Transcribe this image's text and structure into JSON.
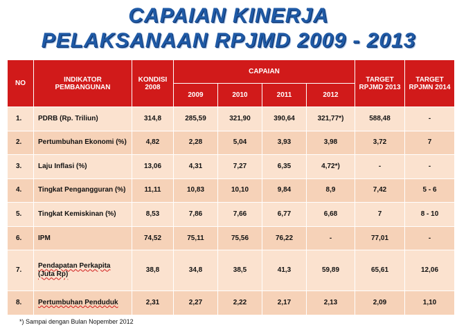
{
  "title": {
    "line1": "CAPAIAN KINERJA",
    "line2": "PELAKSANAAN RPJMD 2009 - 2013"
  },
  "table": {
    "headers": {
      "no": "NO",
      "indikator": "INDIKATOR PEMBANGUNAN",
      "kondisi": "KONDISI 2008",
      "capaian": "CAPAIAN",
      "years": [
        "2009",
        "2010",
        "2011",
        "2012"
      ],
      "target_rpjmd": "TARGET RPJMD 2013",
      "target_rpjmn": "TARGET RPJMN 2014"
    },
    "rows": [
      {
        "no": "1.",
        "indikator": "PDRB (Rp. Triliun)",
        "kondisi": "314,8",
        "y2009": "285,59",
        "y2010": "321,90",
        "y2011": "390,64",
        "y2012": "321,77*)",
        "rpjmd": "588,48",
        "rpjmn": "-"
      },
      {
        "no": "2.",
        "indikator": "Pertumbuhan Ekonomi (%)",
        "kondisi": "4,82",
        "y2009": "2,28",
        "y2010": "5,04",
        "y2011": "3,93",
        "y2012": "3,98",
        "rpjmd": "3,72",
        "rpjmn": "7"
      },
      {
        "no": "3.",
        "indikator": "Laju Inflasi (%)",
        "kondisi": "13,06",
        "y2009": "4,31",
        "y2010": "7,27",
        "y2011": "6,35",
        "y2012": "4,72*)",
        "rpjmd": "-",
        "rpjmn": "-"
      },
      {
        "no": "4.",
        "indikator": "Tingkat Pengangguran (%)",
        "kondisi": "11,11",
        "y2009": "10,83",
        "y2010": "10,10",
        "y2011": "9,84",
        "y2012": "8,9",
        "rpjmd": "7,42",
        "rpjmn": "5 - 6"
      },
      {
        "no": "5.",
        "indikator": "Tingkat  Kemiskinan (%)",
        "kondisi": "8,53",
        "y2009": "7,86",
        "y2010": "7,66",
        "y2011": "6,77",
        "y2012": "6,68",
        "rpjmd": "7",
        "rpjmn": "8 - 10"
      },
      {
        "no": "6.",
        "indikator": "IPM",
        "kondisi": "74,52",
        "y2009": "75,11",
        "y2010": "75,56",
        "y2011": "76,22",
        "y2012": "-",
        "rpjmd": "77,01",
        "rpjmn": "-"
      },
      {
        "no": "7.",
        "indikator": "Pendapatan Perkapita (Juta Rp)",
        "kondisi": "38,8",
        "y2009": "34,8",
        "y2010": "38,5",
        "y2011": "41,3",
        "y2012": "59,89",
        "rpjmd": "65,61",
        "rpjmn": "12,06"
      },
      {
        "no": "8.",
        "indikator": "Pertumbuhan Penduduk",
        "kondisi": "2,31",
        "y2009": "2,27",
        "y2010": "2,22",
        "y2011": "2,17",
        "y2012": "2,13",
        "rpjmd": "2,09",
        "rpjmn": "1,10"
      }
    ]
  },
  "footnote": "*) Sampai dengan Bulan Nopember 2012",
  "colors": {
    "title": "#1f5aa6",
    "header_bg": "#d11a1a",
    "row_bg": "#fbe2cf",
    "row_alt_bg": "#f6d2b8"
  }
}
